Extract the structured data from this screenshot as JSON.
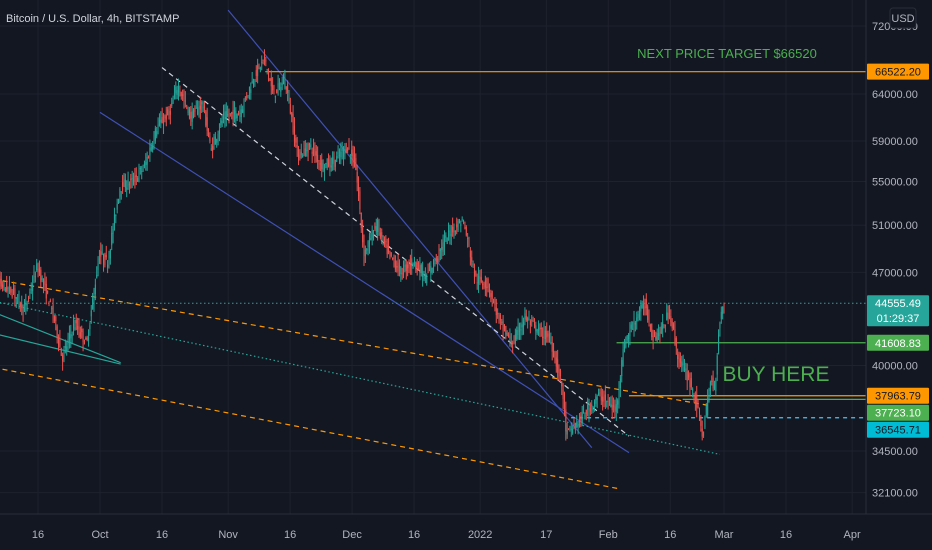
{
  "header": {
    "title": "Bitcoin / U.S. Dollar, 4h, BITSTAMP",
    "currency": "USD"
  },
  "chart_data": {
    "type": "candlestick",
    "y_ticks": [
      "72000.00",
      "64000.00",
      "59000.00",
      "55000.00",
      "51000.00",
      "47000.00",
      "40000.00",
      "34500.00",
      "32100.00"
    ],
    "y_tick_values": [
      72000,
      64000,
      59000,
      55000,
      51000,
      47000,
      40000,
      34500,
      32100
    ],
    "x_ticks": [
      "16",
      "Oct",
      "16",
      "Nov",
      "16",
      "Dec",
      "16",
      "2022",
      "17",
      "Feb",
      "16",
      "Mar",
      "16",
      "Apr"
    ],
    "x_tick_dates": [
      "2021-09-16",
      "2021-10-01",
      "2021-10-16",
      "2021-11-01",
      "2021-11-16",
      "2021-12-01",
      "2021-12-16",
      "2022-01-01",
      "2022-01-17",
      "2022-02-01",
      "2022-02-16",
      "2022-03-01",
      "2022-03-16",
      "2022-04-01"
    ],
    "price_tags": [
      {
        "value": "66522.20",
        "color": "#ff9800",
        "text_color": "#131722"
      },
      {
        "value": "44555.49",
        "color": "#26a69a",
        "text_color": "#ffffff",
        "sub": "01:29:37"
      },
      {
        "value": "41608.83",
        "color": "#4caf50",
        "text_color": "#ffffff"
      },
      {
        "value": "37963.79",
        "color": "#ff9800",
        "text_color": "#131722"
      },
      {
        "value": "37723.10",
        "color": "#4caf50",
        "text_color": "#ffffff"
      },
      {
        "value": "36545.71",
        "color": "#00bcd4",
        "text_color": "#131722"
      }
    ],
    "annotations": [
      {
        "text": "NEXT PRICE TARGET $66520"
      },
      {
        "text": "BUY HERE"
      }
    ],
    "levels": [
      {
        "price": 66522.2,
        "from_date": "2021-11-10",
        "color": "#ff9800"
      },
      {
        "price": 41608.83,
        "from_date": "2022-02-03",
        "color": "#4caf50"
      },
      {
        "price": 37963.79,
        "from_date": "2022-02-06",
        "color": "#ff9800"
      },
      {
        "price": 37723.1,
        "from_date": "2022-02-19",
        "color": "#4caf50"
      },
      {
        "price": 36545.71,
        "from_date": "2022-01-23",
        "color": "#4fc3f7",
        "dashed": true
      }
    ],
    "trendlines": [
      {
        "color": "#3f51b5",
        "style": "solid",
        "points": [
          [
            "2021-11-01",
            74000
          ],
          [
            "2022-01-28",
            34700
          ]
        ]
      },
      {
        "color": "#3f51b5",
        "style": "solid",
        "points": [
          [
            "2021-10-01",
            62000
          ],
          [
            "2022-02-06",
            34400
          ]
        ]
      },
      {
        "color": "#d1d4dc",
        "style": "dashed",
        "points": [
          [
            "2021-10-16",
            67000
          ],
          [
            "2022-02-06",
            35400
          ]
        ]
      },
      {
        "color": "#ff9800",
        "style": "dashed",
        "points": [
          [
            "2021-09-01",
            46700
          ],
          [
            "2022-02-26",
            37300
          ]
        ]
      },
      {
        "color": "#ff9800",
        "style": "dashed",
        "points": [
          [
            "2021-09-01",
            40100
          ],
          [
            "2022-02-04",
            32300
          ]
        ]
      },
      {
        "color": "#26a69a",
        "style": "dotted",
        "points": [
          [
            "2021-09-01",
            45000
          ],
          [
            "2022-02-28",
            34300
          ]
        ]
      },
      {
        "color": "#26a69a",
        "style": "solid",
        "points": [
          [
            "2021-09-01",
            44400
          ],
          [
            "2021-10-06",
            40200
          ]
        ]
      },
      {
        "color": "#26a69a",
        "style": "solid",
        "points": [
          [
            "2021-09-01",
            42600
          ],
          [
            "2021-10-06",
            40100
          ]
        ]
      }
    ],
    "price_path": [
      [
        "2021-09-01",
        48000
      ],
      [
        "2021-09-04",
        50500
      ],
      [
        "2021-09-07",
        46000
      ],
      [
        "2021-09-10",
        45500
      ],
      [
        "2021-09-13",
        44000
      ],
      [
        "2021-09-16",
        47500
      ],
      [
        "2021-09-20",
        43500
      ],
      [
        "2021-09-22",
        40500
      ],
      [
        "2021-09-25",
        43000
      ],
      [
        "2021-09-28",
        41500
      ],
      [
        "2021-10-01",
        48500
      ],
      [
        "2021-10-03",
        47800
      ],
      [
        "2021-10-06",
        54500
      ],
      [
        "2021-10-09",
        55000
      ],
      [
        "2021-10-12",
        56500
      ],
      [
        "2021-10-15",
        60500
      ],
      [
        "2021-10-18",
        62000
      ],
      [
        "2021-10-20",
        65000
      ],
      [
        "2021-10-23",
        61500
      ],
      [
        "2021-10-26",
        63000
      ],
      [
        "2021-10-28",
        58000
      ],
      [
        "2021-10-31",
        61500
      ],
      [
        "2021-11-04",
        62000
      ],
      [
        "2021-11-08",
        66500
      ],
      [
        "2021-11-10",
        68000
      ],
      [
        "2021-11-12",
        64000
      ],
      [
        "2021-11-15",
        65500
      ],
      [
        "2021-11-18",
        57500
      ],
      [
        "2021-11-21",
        58500
      ],
      [
        "2021-11-24",
        56500
      ],
      [
        "2021-11-27",
        57000
      ],
      [
        "2021-11-30",
        58500
      ],
      [
        "2021-12-02",
        56500
      ],
      [
        "2021-12-04",
        48500
      ],
      [
        "2021-12-07",
        51000
      ],
      [
        "2021-12-10",
        48500
      ],
      [
        "2021-12-13",
        47000
      ],
      [
        "2021-12-16",
        48000
      ],
      [
        "2021-12-19",
        46500
      ],
      [
        "2021-12-22",
        48500
      ],
      [
        "2021-12-25",
        50500
      ],
      [
        "2021-12-28",
        51500
      ],
      [
        "2021-12-31",
        46500
      ],
      [
        "2022-01-03",
        46000
      ],
      [
        "2022-01-06",
        43000
      ],
      [
        "2022-01-09",
        41500
      ],
      [
        "2022-01-12",
        43500
      ],
      [
        "2022-01-15",
        42500
      ],
      [
        "2022-01-18",
        42000
      ],
      [
        "2022-01-21",
        38500
      ],
      [
        "2022-01-22",
        35500
      ],
      [
        "2022-01-24",
        36000
      ],
      [
        "2022-01-27",
        37000
      ],
      [
        "2022-01-30",
        38000
      ],
      [
        "2022-02-03",
        37000
      ],
      [
        "2022-02-05",
        41500
      ],
      [
        "2022-02-08",
        43500
      ],
      [
        "2022-02-10",
        44500
      ],
      [
        "2022-02-12",
        42000
      ],
      [
        "2022-02-14",
        42500
      ],
      [
        "2022-02-16",
        44000
      ],
      [
        "2022-02-18",
        40500
      ],
      [
        "2022-02-20",
        39500
      ],
      [
        "2022-02-22",
        38000
      ],
      [
        "2022-02-24",
        35500
      ],
      [
        "2022-02-26",
        39000
      ],
      [
        "2022-02-27",
        38500
      ],
      [
        "2022-02-28",
        43000
      ],
      [
        "2022-03-01",
        44555
      ]
    ],
    "candle_width_days": 0.33,
    "colors": {
      "up": "#26a69a",
      "down": "#ef5350",
      "background": "#131722",
      "grid": "#1e222d",
      "text": "#b2b5be"
    }
  }
}
